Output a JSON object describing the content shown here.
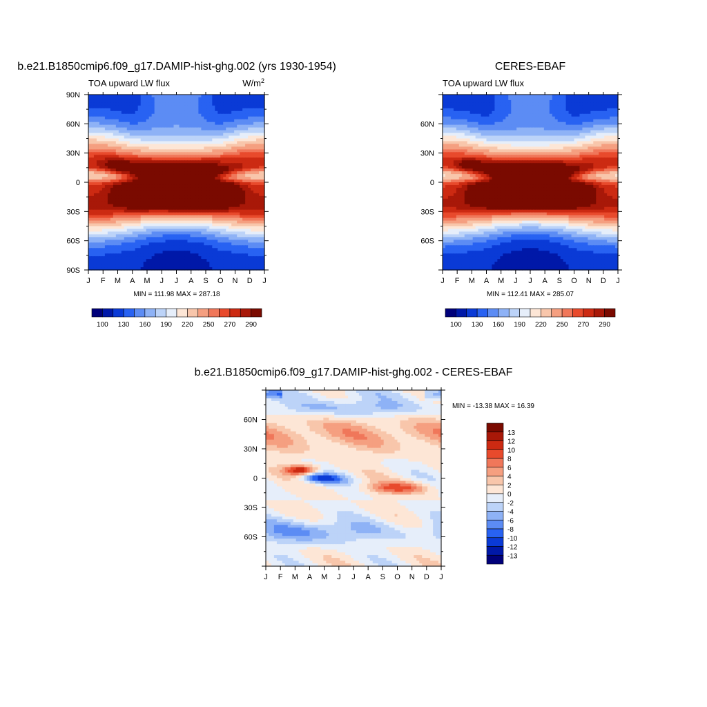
{
  "chart_data": [
    {
      "type": "heatmap",
      "title": "b.e21.B1850cmip6.f09_g17.DAMIP-hist-ghg.002 (yrs 1930-1954)",
      "left_label": "TOA upward LW flux",
      "right_label": "W/m",
      "right_label_sup": "2",
      "stats": "MIN = 111.98 MAX = 287.18",
      "x_ticks": [
        "J",
        "F",
        "M",
        "A",
        "M",
        "J",
        "J",
        "A",
        "S",
        "O",
        "N",
        "D",
        "J"
      ],
      "y_ticks": [
        "90N",
        "60N",
        "30N",
        "0",
        "30S",
        "60S",
        "90S"
      ],
      "y_tick_values": [
        90,
        60,
        30,
        0,
        -30,
        -60,
        -90
      ],
      "ylim": [
        -90,
        90
      ],
      "colorbar_levels": [
        100,
        130,
        160,
        190,
        220,
        250,
        270,
        290
      ],
      "colorbar_labels": [
        "100",
        "130",
        "160",
        "190",
        "220",
        "250",
        "270",
        "290"
      ]
    },
    {
      "type": "heatmap",
      "title": "CERES-EBAF",
      "left_label": "TOA upward LW flux",
      "stats": "MIN = 112.41 MAX = 285.07",
      "x_ticks": [
        "J",
        "F",
        "M",
        "A",
        "M",
        "J",
        "J",
        "A",
        "S",
        "O",
        "N",
        "D",
        "J"
      ],
      "y_ticks": [
        "60N",
        "30N",
        "0",
        "30S",
        "60S"
      ],
      "y_tick_values": [
        60,
        30,
        0,
        -30,
        -60
      ],
      "ylim": [
        -90,
        90
      ],
      "colorbar_levels": [
        100,
        130,
        160,
        190,
        220,
        250,
        270,
        290
      ],
      "colorbar_labels": [
        "100",
        "130",
        "160",
        "190",
        "220",
        "250",
        "270",
        "290"
      ]
    },
    {
      "type": "heatmap",
      "title": "b.e21.B1850cmip6.f09_g17.DAMIP-hist-ghg.002 - CERES-EBAF",
      "stats": "MIN = -13.38 MAX =  16.39",
      "x_ticks": [
        "J",
        "F",
        "M",
        "A",
        "M",
        "J",
        "J",
        "A",
        "S",
        "O",
        "N",
        "D",
        "J"
      ],
      "y_ticks": [
        "60N",
        "30N",
        "0",
        "30S",
        "60S"
      ],
      "y_tick_values": [
        60,
        30,
        0,
        -30,
        -60
      ],
      "ylim": [
        -90,
        90
      ],
      "colorbar_levels": [
        13,
        12,
        10,
        8,
        6,
        4,
        2,
        0,
        -2,
        -4,
        -6,
        -8,
        -10,
        -12,
        -13
      ],
      "colorbar_labels": [
        "13",
        "12",
        "10",
        "8",
        "6",
        "4",
        "2",
        "0",
        "-2",
        "-4",
        "-6",
        "-8",
        "-10",
        "-12",
        "-13"
      ]
    }
  ],
  "colors": {
    "abs_palette": [
      "#00007a",
      "#0018a8",
      "#0a3ad6",
      "#2862f2",
      "#5c8cf4",
      "#8eb2f6",
      "#bcd3f8",
      "#e6eefa",
      "#fde6d6",
      "#f8c6ab",
      "#f59f80",
      "#f0775a",
      "#e84a2c",
      "#cc2a12",
      "#a81808",
      "#7a0a00"
    ],
    "diff_palette": [
      "#7a0a00",
      "#a81808",
      "#cc2a12",
      "#e84a2c",
      "#f0775a",
      "#f59f80",
      "#f8c6ab",
      "#fde6d6",
      "#e6eefa",
      "#bcd3f8",
      "#8eb2f6",
      "#5c8cf4",
      "#2862f2",
      "#0a3ad6",
      "#0018a8",
      "#00007a"
    ]
  }
}
